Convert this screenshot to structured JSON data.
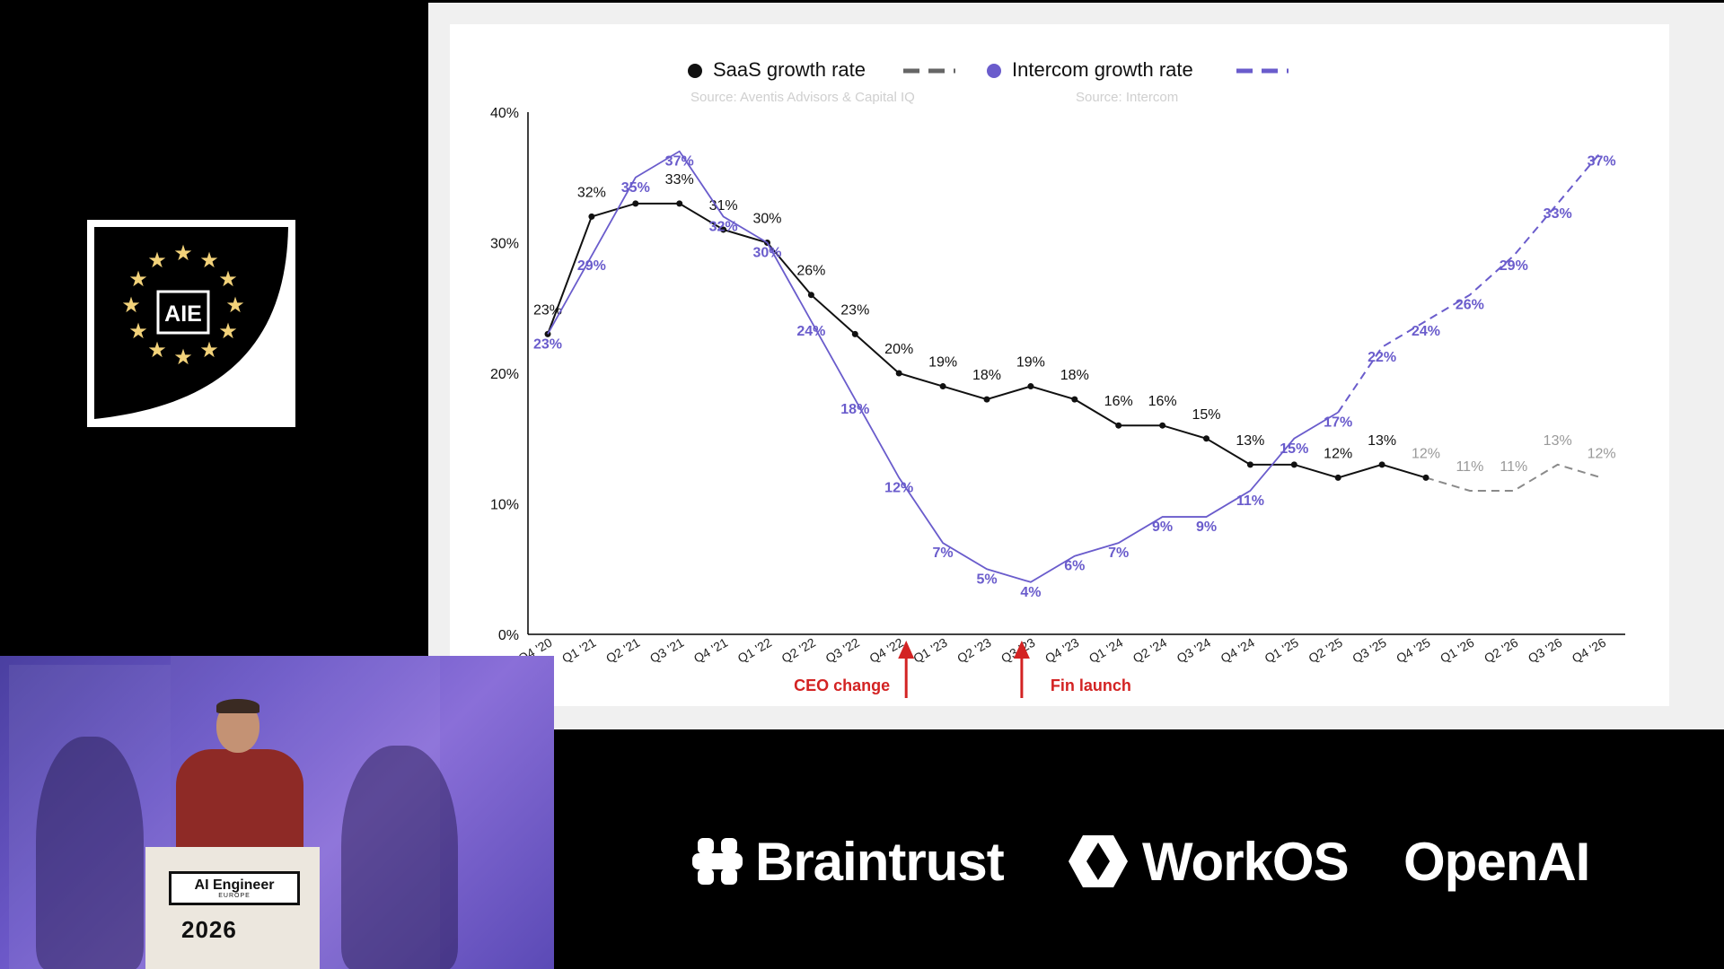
{
  "logo": {
    "text": "AIE"
  },
  "chart_data": {
    "type": "line",
    "categories": [
      "Q4 '20",
      "Q1 '21",
      "Q2 '21",
      "Q3 '21",
      "Q4 '21",
      "Q1 '22",
      "Q2 '22",
      "Q3 '22",
      "Q4 '22",
      "Q1 '23",
      "Q2 '23",
      "Q3 '23",
      "Q4 '23",
      "Q1 '24",
      "Q2 '24",
      "Q3 '24",
      "Q4 '24",
      "Q1 '25",
      "Q2 '25",
      "Q3 '25",
      "Q4 '25",
      "Q1 '26",
      "Q2 '26",
      "Q3 '26",
      "Q4 '26"
    ],
    "ylim": [
      0,
      40
    ],
    "y_ticks": [
      0,
      10,
      20,
      30,
      40
    ],
    "y_tick_labels": [
      "0%",
      "10%",
      "20%",
      "30%",
      "40%"
    ],
    "grid": false,
    "legend_position": "top-center",
    "series": [
      {
        "name": "SaaS growth rate",
        "source": "Source: Aventis Advisors & Capital IQ",
        "color": "#111111",
        "forecast_color": "#8a8a8a",
        "actual_count": 21,
        "values": [
          23,
          32,
          33,
          33,
          31,
          30,
          26,
          23,
          20,
          19,
          18,
          19,
          18,
          16,
          16,
          15,
          13,
          13,
          12,
          13,
          12,
          11,
          11,
          13,
          12
        ],
        "labels": [
          "23%",
          "32%",
          "",
          "33%",
          "31%",
          "30%",
          "26%",
          "23%",
          "20%",
          "19%",
          "18%",
          "19%",
          "18%",
          "16%",
          "16%",
          "15%",
          "13%",
          "",
          "12%",
          "13%",
          "12%",
          "11%",
          "11%",
          "13%",
          "12%"
        ]
      },
      {
        "name": "Intercom growth rate",
        "source": "Source: Intercom",
        "color": "#6a5ccc",
        "forecast_color": "#6a5ccc",
        "actual_count": 19,
        "values": [
          23,
          29,
          35,
          37,
          32,
          30,
          24,
          18,
          12,
          7,
          5,
          4,
          6,
          7,
          9,
          9,
          11,
          15,
          17,
          22,
          24,
          26,
          29,
          33,
          37
        ],
        "labels": [
          "23%",
          "29%",
          "35%",
          "37%",
          "32%",
          "30%",
          "24%",
          "18%",
          "12%",
          "7%",
          "5%",
          "4%",
          "6%",
          "7%",
          "9%",
          "9%",
          "11%",
          "15%",
          "17%",
          "22%",
          "24%",
          "26%",
          "29%",
          "33%",
          "37%"
        ]
      }
    ],
    "annotations": [
      {
        "category_index": 8,
        "text": "CEO change",
        "color": "#d32323"
      },
      {
        "category_index": 11,
        "text": "Fin launch",
        "color": "#d32323"
      }
    ]
  },
  "camera": {
    "podium_title": "AI Engineer",
    "podium_subtitle": "EUROPE",
    "podium_year": "2026"
  },
  "sponsors": {
    "braintrust": "Braintrust",
    "workos": "WorkOS",
    "openai": "OpenAI"
  }
}
